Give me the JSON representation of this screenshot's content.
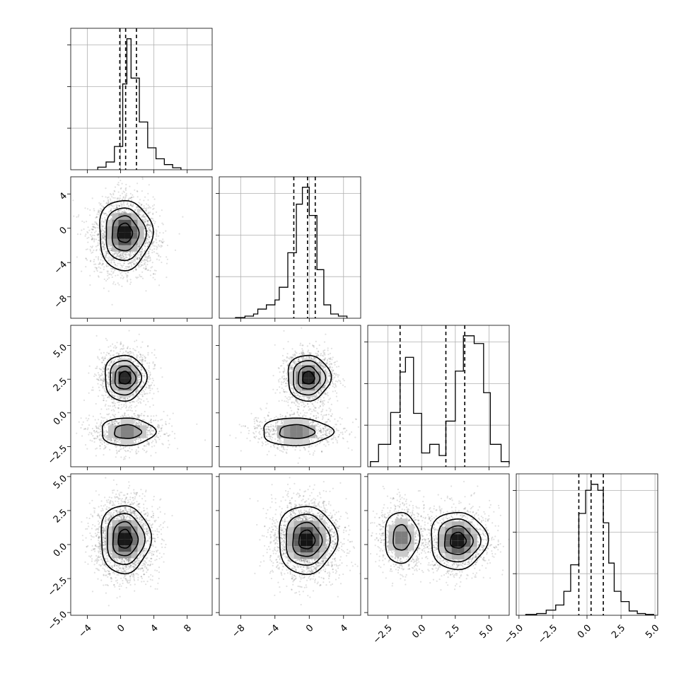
{
  "chart_data": {
    "type": "corner",
    "parameters": [
      "",
      "",
      "",
      ""
    ],
    "ranges": [
      [
        -6,
        11
      ],
      [
        -10.5,
        6
      ],
      [
        -4,
        6.5
      ],
      [
        -5.2,
        5.2
      ]
    ],
    "ticks": [
      {
        "values": [
          -4,
          0,
          4,
          8
        ],
        "labels": [
          "−4",
          "0",
          "4",
          "8"
        ]
      },
      {
        "values": [
          -8,
          -4,
          0,
          4
        ],
        "labels": [
          "−8",
          "−4",
          "0",
          "4"
        ]
      },
      {
        "values": [
          -2.5,
          0,
          2.5,
          5
        ],
        "labels": [
          "−2.5",
          "0.0",
          "2.5",
          "5.0"
        ]
      },
      {
        "values": [
          -5,
          -2.5,
          0,
          2.5,
          5
        ],
        "labels": [
          "−5.0",
          "−2.5",
          "0.0",
          "2.5",
          "5.0"
        ]
      }
    ],
    "quantiles": [
      [
        -0.1,
        0.6,
        1.9
      ],
      [
        -1.8,
        -0.2,
        0.7
      ],
      [
        -1.6,
        1.8,
        3.2
      ],
      [
        -0.6,
        0.3,
        1.2
      ]
    ],
    "histograms": [
      {
        "edges": [
          -2.75,
          -1.75,
          -0.75,
          0.25,
          0.75,
          1.25,
          2.25,
          3.25,
          4.25,
          5.25,
          6.25,
          7.25
        ],
        "counts": [
          0.4,
          1.2,
          3.6,
          13.3,
          20.3,
          14.2,
          7.4,
          3.4,
          1.7,
          0.8,
          0.3
        ]
      },
      {
        "edges": [
          -8.6,
          -7.5,
          -6.5,
          -6.0,
          -5.0,
          -4.0,
          -3.5,
          -2.5,
          -1.5,
          -0.8,
          0.0,
          0.9,
          1.7,
          2.5,
          3.4,
          4.4
        ],
        "counts": [
          0.1,
          0.3,
          0.6,
          1.3,
          1.9,
          2.6,
          4.4,
          9.3,
          16.2,
          18.6,
          14.6,
          6.9,
          1.9,
          0.6,
          0.3
        ]
      },
      {
        "edges": [
          -3.8,
          -3.2,
          -2.3,
          -1.6,
          -1.2,
          -0.6,
          0.0,
          0.6,
          1.3,
          1.8,
          2.5,
          3.1,
          3.9,
          4.6,
          5.1,
          5.9,
          6.5
        ],
        "counts": [
          0.6,
          2.6,
          6.3,
          11.0,
          12.7,
          6.2,
          1.6,
          2.6,
          1.3,
          5.3,
          11.1,
          15.2,
          14.3,
          8.6,
          2.6,
          0.6,
          0.3
        ]
      },
      {
        "edges": [
          -4.5,
          -3.7,
          -3.0,
          -2.3,
          -1.7,
          -1.2,
          -0.6,
          -0.1,
          0.3,
          0.8,
          1.2,
          1.6,
          2.0,
          2.5,
          3.1,
          3.7,
          4.3,
          4.9
        ],
        "counts": [
          0.1,
          0.2,
          0.6,
          1.2,
          2.8,
          5.9,
          11.9,
          14.6,
          15.3,
          14.6,
          10.8,
          6.1,
          2.8,
          1.6,
          0.5,
          0.2,
          0.1
        ]
      }
    ],
    "components": {
      "1_0": [
        {
          "mx": 0.5,
          "my": -0.5,
          "sx": 1.6,
          "sy": 1.9,
          "w": 1,
          "skew": 0.25
        }
      ],
      "2_0": [
        {
          "mx": 0.5,
          "my": 2.6,
          "sx": 1.25,
          "sy": 0.85,
          "w": 0.62
        },
        {
          "mx": 0.8,
          "my": -1.4,
          "sx": 1.9,
          "sy": 0.6,
          "w": 0.38
        }
      ],
      "2_1": [
        {
          "mx": -0.1,
          "my": 2.6,
          "sx": 1.25,
          "sy": 0.85,
          "w": 0.62
        },
        {
          "mx": -1.5,
          "my": -1.4,
          "sx": 2.4,
          "sy": 0.6,
          "w": 0.38
        }
      ],
      "3_0": [
        {
          "mx": 0.5,
          "my": 0.4,
          "sx": 1.5,
          "sy": 1.25,
          "w": 1
        }
      ],
      "3_1": [
        {
          "mx": -0.3,
          "my": 0.35,
          "sx": 1.7,
          "sy": 1.25,
          "w": 1
        }
      ],
      "3_2": [
        {
          "mx": -1.5,
          "my": 0.5,
          "sx": 0.75,
          "sy": 1.1,
          "w": 0.38
        },
        {
          "mx": 2.7,
          "my": 0.3,
          "sx": 1.05,
          "sy": 1.05,
          "w": 0.62
        }
      ]
    }
  }
}
